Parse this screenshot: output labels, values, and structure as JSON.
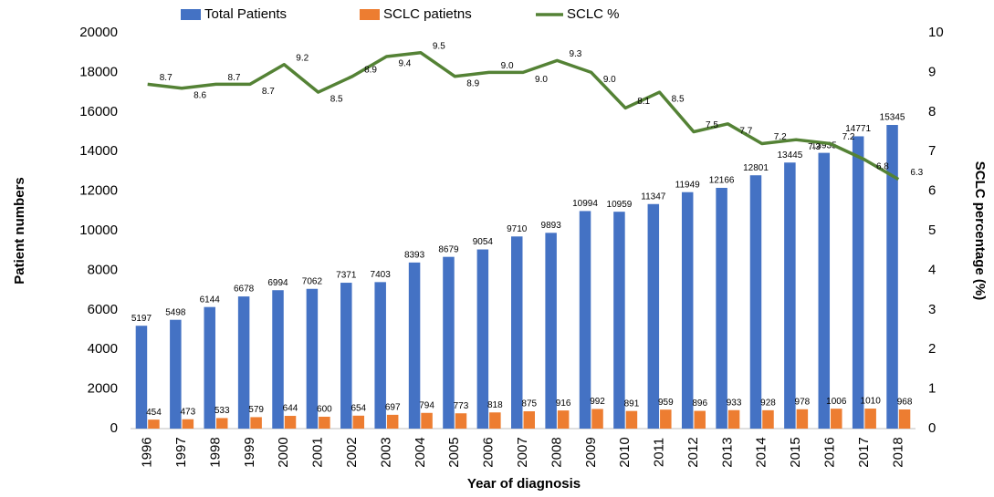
{
  "chart_data": {
    "type": "bar",
    "x_label": "Year of diagnosis",
    "y_label": "Patient numbers",
    "y2_label": "SCLC percentage (%)",
    "categories": [
      "1996",
      "1997",
      "1998",
      "1999",
      "2000",
      "2001",
      "2002",
      "2003",
      "2004",
      "2005",
      "2006",
      "2007",
      "2008",
      "2009",
      "2010",
      "2011",
      "2012",
      "2013",
      "2014",
      "2015",
      "2016",
      "2017",
      "2018"
    ],
    "series": [
      {
        "name": "Total Patients",
        "type": "bar",
        "color": "#4472c4",
        "values": [
          5197,
          5498,
          6144,
          6678,
          6994,
          7062,
          7371,
          7403,
          8393,
          8679,
          9054,
          9710,
          9893,
          10994,
          10959,
          11347,
          11949,
          12166,
          12801,
          13445,
          13935,
          14771,
          15345
        ]
      },
      {
        "name": "SCLC patietns",
        "type": "bar",
        "color": "#ed7d31",
        "values": [
          454,
          473,
          533,
          579,
          644,
          600,
          654,
          697,
          794,
          773,
          818,
          875,
          916,
          992,
          891,
          959,
          896,
          933,
          928,
          978,
          1006,
          1010,
          968
        ]
      },
      {
        "name": "SCLC %",
        "type": "line",
        "axis": "y2",
        "color": "#548235",
        "values": [
          8.7,
          8.6,
          8.7,
          8.7,
          9.2,
          8.5,
          8.9,
          9.4,
          9.5,
          8.9,
          9,
          9,
          9.3,
          9,
          8.1,
          8.5,
          7.5,
          7.7,
          7.2,
          7.3,
          7.2,
          6.8,
          6.3
        ],
        "value_labels": [
          "8.7",
          "8.6",
          "8.7",
          "8.7",
          "9.2",
          "8.5",
          "8.9",
          "9.4",
          "9.5",
          "8.9",
          "9.0",
          "9.0",
          "9.3",
          "9.0",
          "8.1",
          "8.5",
          "7.5",
          "7.7",
          "7.2",
          "7.3",
          "7.2",
          "6.8",
          "6.3"
        ]
      }
    ],
    "ylim": [
      0,
      20000
    ],
    "yticks": [
      0,
      2000,
      4000,
      6000,
      8000,
      10000,
      12000,
      14000,
      16000,
      18000,
      20000
    ],
    "y2lim": [
      0,
      10
    ],
    "y2ticks": [
      0,
      1,
      2,
      3,
      4,
      5,
      6,
      7,
      8,
      9,
      10
    ],
    "legend": "top",
    "grid": false
  }
}
